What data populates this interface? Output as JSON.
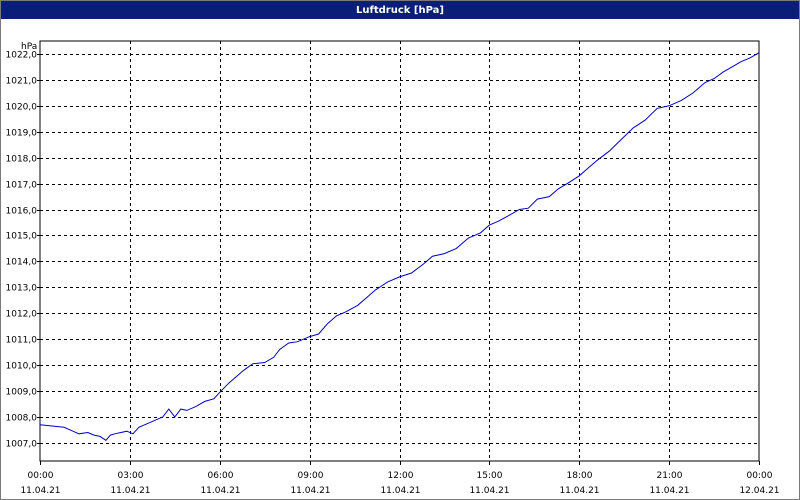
{
  "window": {
    "title": "Luftdruck [hPa]"
  },
  "chart_data": {
    "type": "line",
    "title": "Luftdruck [hPa]",
    "ylabel": "hPa",
    "xlabel": "",
    "ylim": [
      1006.3,
      1022.5
    ],
    "xlim": [
      0,
      24
    ],
    "grid": true,
    "y_ticks": [
      1007,
      1008,
      1009,
      1010,
      1011,
      1012,
      1013,
      1014,
      1015,
      1016,
      1017,
      1018,
      1019,
      1020,
      1021,
      1022
    ],
    "y_tick_labels": [
      "1007,0",
      "1008,0",
      "1009,0",
      "1010,0",
      "1011,0",
      "1012,0",
      "1013,0",
      "1014,0",
      "1015,0",
      "1016,0",
      "1017,0",
      "1018,0",
      "1019,0",
      "1020,0",
      "1021,0",
      "1022,0"
    ],
    "x_ticks": [
      {
        "hour": 0,
        "time": "00:00",
        "date": "11.04.21"
      },
      {
        "hour": 3,
        "time": "03:00",
        "date": "11.04.21"
      },
      {
        "hour": 6,
        "time": "06:00",
        "date": "11.04.21"
      },
      {
        "hour": 9,
        "time": "09:00",
        "date": "11.04.21"
      },
      {
        "hour": 12,
        "time": "12:00",
        "date": "11.04.21"
      },
      {
        "hour": 15,
        "time": "15:00",
        "date": "11.04.21"
      },
      {
        "hour": 18,
        "time": "18:00",
        "date": "11.04.21"
      },
      {
        "hour": 21,
        "time": "21:00",
        "date": "11.04.21"
      },
      {
        "hour": 24,
        "time": "00:00",
        "date": "12.04.21"
      }
    ],
    "series": [
      {
        "color": "#0000cc",
        "x": [
          0,
          0.4,
          0.8,
          1.1,
          1.3,
          1.6,
          1.8,
          2.0,
          2.2,
          2.35,
          2.5,
          2.7,
          2.9,
          3.1,
          3.3,
          3.5,
          3.8,
          4.1,
          4.3,
          4.5,
          4.7,
          4.9,
          5.2,
          5.5,
          5.8,
          6.0,
          6.3,
          6.5,
          6.8,
          7.1,
          7.5,
          7.8,
          8.0,
          8.3,
          8.6,
          9.0,
          9.3,
          9.6,
          9.9,
          10.2,
          10.6,
          10.9,
          11.2,
          11.6,
          12.0,
          12.4,
          12.8,
          13.1,
          13.5,
          13.9,
          14.3,
          14.7,
          15.0,
          15.3,
          15.7,
          16.0,
          16.3,
          16.6,
          17.0,
          17.3,
          17.6,
          18.0,
          18.3,
          18.6,
          19.0,
          19.4,
          19.8,
          20.2,
          20.6,
          21.0,
          21.4,
          21.8,
          22.2,
          22.5,
          22.8,
          23.1,
          23.4,
          23.7,
          24.0
        ],
        "y": [
          1007.7,
          1007.65,
          1007.6,
          1007.45,
          1007.35,
          1007.4,
          1007.3,
          1007.25,
          1007.1,
          1007.3,
          1007.35,
          1007.4,
          1007.45,
          1007.35,
          1007.6,
          1007.7,
          1007.85,
          1008.0,
          1008.3,
          1008.0,
          1008.3,
          1008.25,
          1008.4,
          1008.6,
          1008.7,
          1008.95,
          1009.3,
          1009.5,
          1009.8,
          1010.05,
          1010.1,
          1010.3,
          1010.6,
          1010.85,
          1010.9,
          1011.1,
          1011.2,
          1011.6,
          1011.9,
          1012.05,
          1012.3,
          1012.6,
          1012.9,
          1013.2,
          1013.4,
          1013.55,
          1013.9,
          1014.2,
          1014.3,
          1014.5,
          1014.9,
          1015.1,
          1015.4,
          1015.55,
          1015.8,
          1016.0,
          1016.05,
          1016.4,
          1016.5,
          1016.8,
          1017.0,
          1017.3,
          1017.6,
          1017.9,
          1018.25,
          1018.7,
          1019.15,
          1019.45,
          1019.9,
          1020.0,
          1020.2,
          1020.5,
          1020.9,
          1021.05,
          1021.3,
          1021.5,
          1021.7,
          1021.85,
          1022.05
        ]
      }
    ]
  }
}
